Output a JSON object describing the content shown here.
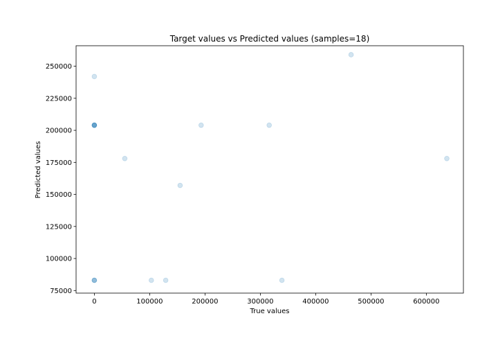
{
  "chart_data": {
    "type": "scatter",
    "title": "Target values vs Predicted values (samples=18)",
    "xlabel": "True values",
    "ylabel": "Predicted values",
    "xlim": [
      -33000,
      667000
    ],
    "ylim": [
      73000,
      266000
    ],
    "xticks": [
      0,
      100000,
      200000,
      300000,
      400000,
      500000,
      600000
    ],
    "xtick_labels": [
      "0",
      "100000",
      "200000",
      "300000",
      "400000",
      "500000",
      "600000"
    ],
    "yticks": [
      75000,
      100000,
      125000,
      150000,
      175000,
      200000,
      225000,
      250000
    ],
    "ytick_labels": [
      "75000",
      "100000",
      "125000",
      "150000",
      "175000",
      "200000",
      "225000",
      "250000"
    ],
    "grid": false,
    "point_color": "#1f77b4",
    "point_alpha": 0.2,
    "points": [
      {
        "x": 0,
        "y": 242000
      },
      {
        "x": 0,
        "y": 204000
      },
      {
        "x": 0,
        "y": 204000
      },
      {
        "x": 0,
        "y": 204000
      },
      {
        "x": 0,
        "y": 204000
      },
      {
        "x": 0,
        "y": 83000
      },
      {
        "x": 0,
        "y": 83000
      },
      {
        "x": 0,
        "y": 83000
      },
      {
        "x": 55000,
        "y": 178000
      },
      {
        "x": 103000,
        "y": 83000
      },
      {
        "x": 129000,
        "y": 83000
      },
      {
        "x": 155000,
        "y": 157000
      },
      {
        "x": 193000,
        "y": 204000
      },
      {
        "x": 316000,
        "y": 204000
      },
      {
        "x": 339000,
        "y": 83000
      },
      {
        "x": 464000,
        "y": 259000
      },
      {
        "x": 637000,
        "y": 178000
      },
      {
        "x": 0,
        "y": 204000
      }
    ]
  }
}
